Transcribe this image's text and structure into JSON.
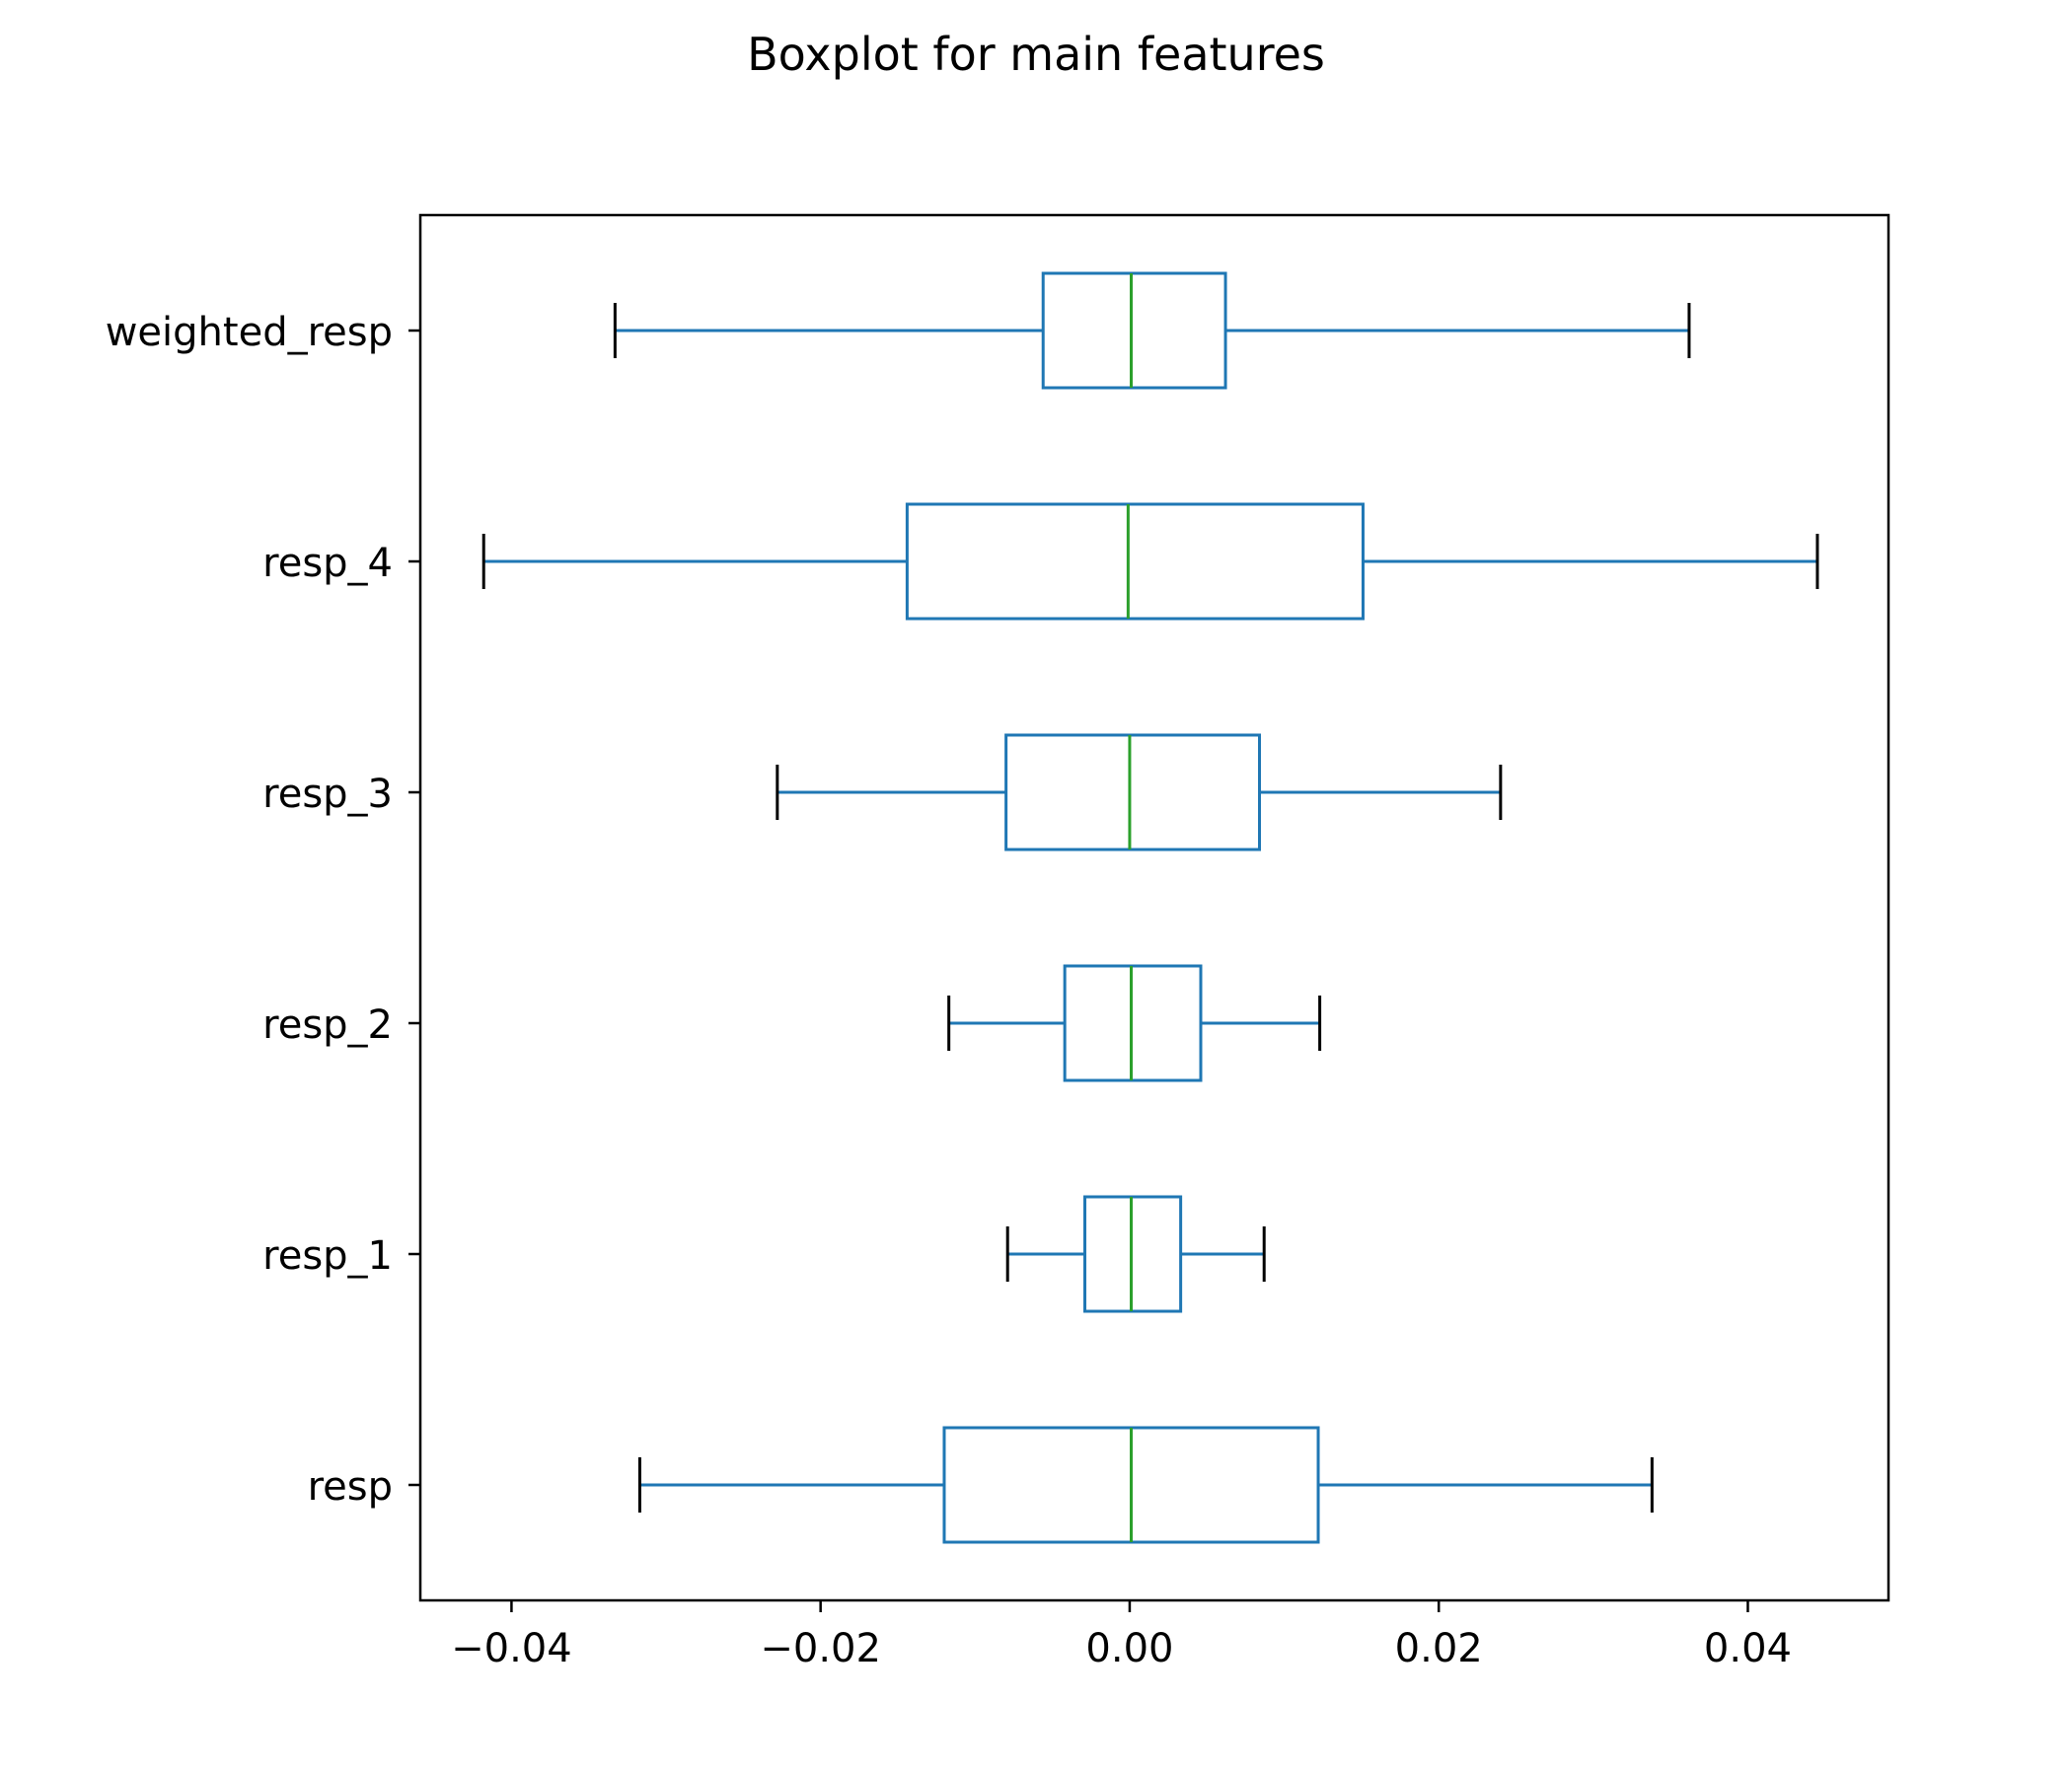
{
  "title": "Boxplot for main features",
  "chart_data": {
    "type": "boxplot",
    "orientation": "horizontal",
    "title": "Boxplot for main features",
    "xlabel": "",
    "ylabel": "",
    "xlim": [
      -0.0459,
      0.0491
    ],
    "xticks": [
      -0.04,
      -0.02,
      0.0,
      0.02,
      0.04
    ],
    "xtick_labels": [
      "−0.04",
      "−0.02",
      "0.00",
      "0.02",
      "0.04"
    ],
    "grid": false,
    "colors": {
      "box": "#1f77b4",
      "median": "#2ca02c",
      "cap": "#000000"
    },
    "series": [
      {
        "name": "resp",
        "whisker_low": -0.0317,
        "q1": -0.012,
        "median": 0.0001,
        "q3": 0.0122,
        "whisker_high": 0.0338
      },
      {
        "name": "resp_1",
        "whisker_low": -0.0079,
        "q1": -0.0029,
        "median": 0.0001,
        "q3": 0.0033,
        "whisker_high": 0.0087
      },
      {
        "name": "resp_2",
        "whisker_low": -0.0117,
        "q1": -0.0042,
        "median": 0.0001,
        "q3": 0.0046,
        "whisker_high": 0.0123
      },
      {
        "name": "resp_3",
        "whisker_low": -0.0228,
        "q1": -0.008,
        "median": 0.0,
        "q3": 0.0084,
        "whisker_high": 0.024
      },
      {
        "name": "resp_4",
        "whisker_low": -0.0418,
        "q1": -0.0144,
        "median": -0.0001,
        "q3": 0.0151,
        "whisker_high": 0.0445
      },
      {
        "name": "weighted_resp",
        "whisker_low": -0.0333,
        "q1": -0.0056,
        "median": 0.0001,
        "q3": 0.0062,
        "whisker_high": 0.0362
      }
    ]
  }
}
